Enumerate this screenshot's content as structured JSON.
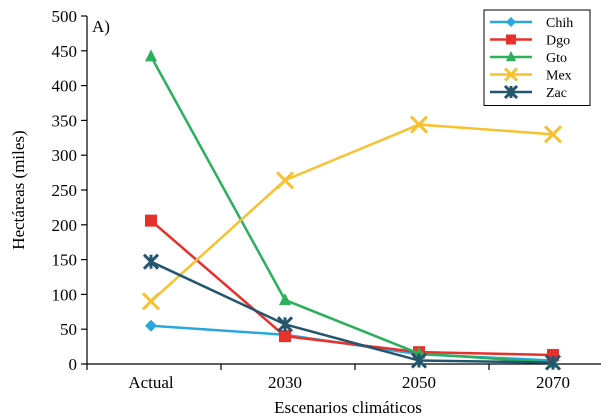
{
  "chart_data": {
    "type": "line",
    "panel_label": "A)",
    "xlabel": "Escenarios climáticos",
    "ylabel": "Hectáreas (miles)",
    "categories": [
      "Actual",
      "2030",
      "2050",
      "2070"
    ],
    "ylim": [
      0,
      500
    ],
    "yticks": [
      0,
      50,
      100,
      150,
      200,
      250,
      300,
      350,
      400,
      450,
      500
    ],
    "grid": false,
    "legend_position": "top-right",
    "series": [
      {
        "name": "Chih",
        "color": "#29a8e0",
        "marker": "diamond",
        "values": [
          55,
          42,
          14,
          5
        ]
      },
      {
        "name": "Dgo",
        "color": "#e8312b",
        "marker": "square",
        "values": [
          206,
          40,
          17,
          13
        ]
      },
      {
        "name": "Gto",
        "color": "#29b05a",
        "marker": "triangle",
        "values": [
          442,
          92,
          15,
          2
        ]
      },
      {
        "name": "Mex",
        "color": "#f7c12f",
        "marker": "x",
        "values": [
          90,
          264,
          344,
          330
        ]
      },
      {
        "name": "Zac",
        "color": "#23566e",
        "marker": "star",
        "values": [
          147,
          57,
          5,
          2
        ]
      }
    ]
  }
}
